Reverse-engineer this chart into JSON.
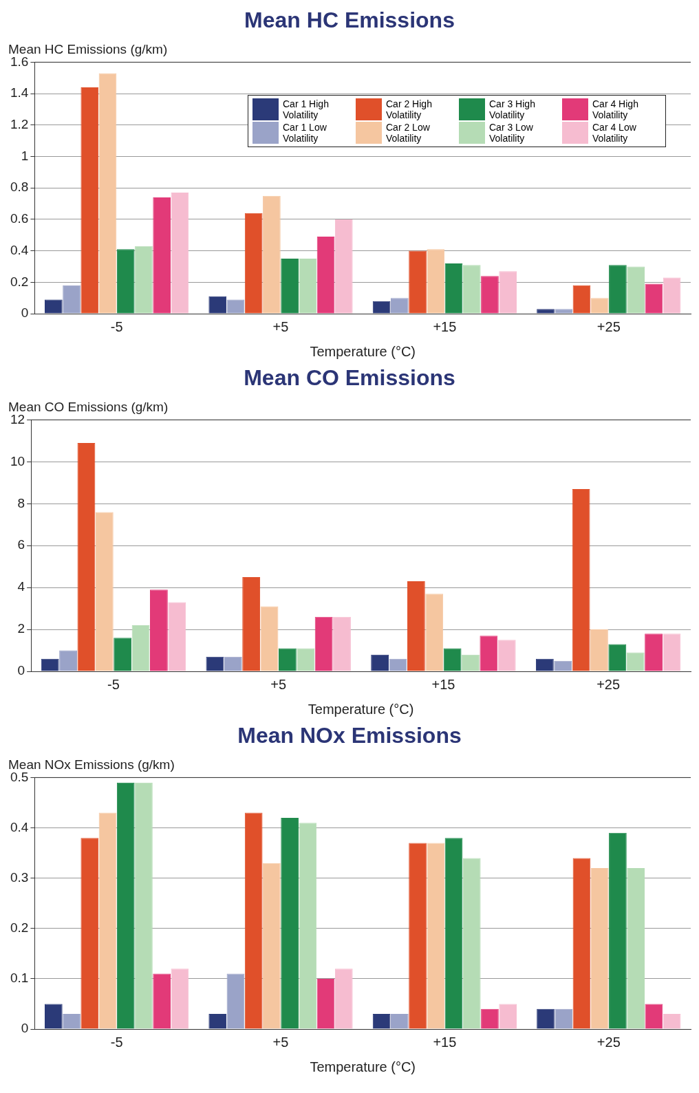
{
  "chart_data": [
    {
      "type": "bar",
      "title": "Mean HC Emissions",
      "ylabel": "Mean HC Emissions (g/km)",
      "xlabel": "Temperature (°C)",
      "categories": [
        "-5",
        "+5",
        "+15",
        "+25"
      ],
      "ylim": [
        0,
        1.6
      ],
      "yticks": [
        0,
        0.2,
        0.4,
        0.6,
        0.8,
        1,
        1.2,
        1.4,
        1.6
      ],
      "grid": "y",
      "legend": "top right",
      "series": [
        {
          "name": "Car 1 High Volatility",
          "color": "#2b3a78",
          "values": [
            0.09,
            0.11,
            0.08,
            0.03
          ]
        },
        {
          "name": "Car 1 Low Volatility",
          "color": "#9aa3c8",
          "values": [
            0.18,
            0.09,
            0.1,
            0.03
          ]
        },
        {
          "name": "Car 2 High Volatility",
          "color": "#e0502a",
          "values": [
            1.44,
            0.64,
            0.4,
            0.18
          ]
        },
        {
          "name": "Car 2 Low Volatility",
          "color": "#f5c6a0",
          "values": [
            1.53,
            0.75,
            0.41,
            0.1
          ]
        },
        {
          "name": "Car 3 High Volatility",
          "color": "#1f8a4c",
          "values": [
            0.41,
            0.35,
            0.32,
            0.31
          ]
        },
        {
          "name": "Car 3 Low Volatility",
          "color": "#b5dcb5",
          "values": [
            0.43,
            0.35,
            0.31,
            0.3
          ]
        },
        {
          "name": "Car 4 High Volatility",
          "color": "#e23a78",
          "values": [
            0.74,
            0.49,
            0.24,
            0.19
          ]
        },
        {
          "name": "Car 4 Low Volatility",
          "color": "#f6bcd0",
          "values": [
            0.77,
            0.6,
            0.27,
            0.23
          ]
        }
      ]
    },
    {
      "type": "bar",
      "title": "Mean CO Emissions",
      "ylabel": "Mean CO Emissions (g/km)",
      "xlabel": "Temperature (°C)",
      "categories": [
        "-5",
        "+5",
        "+15",
        "+25"
      ],
      "ylim": [
        0,
        12
      ],
      "yticks": [
        0,
        2,
        4,
        6,
        8,
        10,
        12
      ],
      "grid": "y",
      "series": [
        {
          "color": "#2b3a78",
          "values": [
            0.6,
            0.7,
            0.8,
            0.6
          ]
        },
        {
          "color": "#9aa3c8",
          "values": [
            1.0,
            0.7,
            0.6,
            0.5
          ]
        },
        {
          "color": "#e0502a",
          "values": [
            10.9,
            4.5,
            4.3,
            8.7
          ]
        },
        {
          "color": "#f5c6a0",
          "values": [
            7.6,
            3.1,
            3.7,
            2.0
          ]
        },
        {
          "color": "#1f8a4c",
          "values": [
            1.6,
            1.1,
            1.1,
            1.3
          ]
        },
        {
          "color": "#b5dcb5",
          "values": [
            2.2,
            1.1,
            0.8,
            0.9
          ]
        },
        {
          "color": "#e23a78",
          "values": [
            3.9,
            2.6,
            1.7,
            1.8
          ]
        },
        {
          "color": "#f6bcd0",
          "values": [
            3.3,
            2.6,
            1.5,
            1.8
          ]
        }
      ]
    },
    {
      "type": "bar",
      "title": "Mean NOx Emissions",
      "ylabel": "Mean NOx Emissions (g/km)",
      "xlabel": "Temperature (°C)",
      "categories": [
        "-5",
        "+5",
        "+15",
        "+25"
      ],
      "ylim": [
        0,
        0.5
      ],
      "yticks": [
        0,
        0.1,
        0.2,
        0.3,
        0.4,
        0.5
      ],
      "grid": "y",
      "series": [
        {
          "color": "#2b3a78",
          "values": [
            0.05,
            0.03,
            0.03,
            0.04
          ]
        },
        {
          "color": "#9aa3c8",
          "values": [
            0.03,
            0.11,
            0.03,
            0.04
          ]
        },
        {
          "color": "#e0502a",
          "values": [
            0.38,
            0.43,
            0.37,
            0.34
          ]
        },
        {
          "color": "#f5c6a0",
          "values": [
            0.43,
            0.33,
            0.37,
            0.32
          ]
        },
        {
          "color": "#1f8a4c",
          "values": [
            0.49,
            0.42,
            0.38,
            0.39
          ]
        },
        {
          "color": "#b5dcb5",
          "values": [
            0.49,
            0.41,
            0.34,
            0.32
          ]
        },
        {
          "color": "#e23a78",
          "values": [
            0.11,
            0.1,
            0.04,
            0.05
          ]
        },
        {
          "color": "#f6bcd0",
          "values": [
            0.12,
            0.12,
            0.05,
            0.03
          ]
        }
      ]
    }
  ]
}
